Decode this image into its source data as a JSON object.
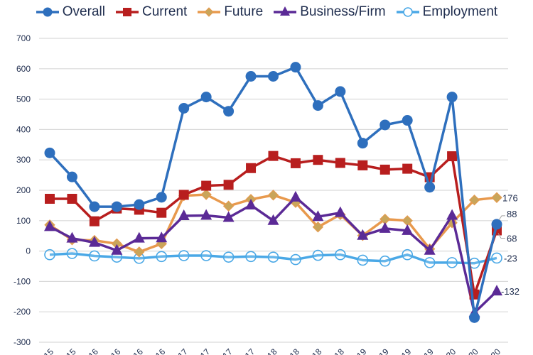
{
  "chart_data": {
    "type": "line",
    "title": "",
    "xlabel": "",
    "ylabel": "",
    "ylim": [
      -300,
      700
    ],
    "yticks": [
      "700",
      "600",
      "500",
      "400",
      "300",
      "200",
      "100",
      "0",
      "-100",
      "-200",
      "-300"
    ],
    "ytick_values": [
      700,
      600,
      500,
      400,
      300,
      200,
      100,
      0,
      -100,
      -200,
      -300
    ],
    "grid": true,
    "legend_position": "top",
    "categories": [
      "15",
      "15",
      "16",
      "16",
      "16",
      "16",
      "17",
      "17",
      "17",
      "17",
      "18",
      "18",
      "18",
      "18",
      "19",
      "19",
      "19",
      "19",
      "20",
      "20",
      "20"
    ],
    "series": [
      {
        "name": "Overall",
        "color": "#2e6fbd",
        "marker": "circle",
        "values": [
          323,
          244,
          146,
          146,
          153,
          177,
          470,
          507,
          460,
          575,
          575,
          605,
          479,
          525,
          355,
          415,
          430,
          210,
          507,
          -219,
          88
        ]
      },
      {
        "name": "Current",
        "color": "#b81e1e",
        "marker": "square",
        "values": [
          172,
          172,
          98,
          140,
          136,
          126,
          185,
          215,
          218,
          273,
          313,
          289,
          300,
          290,
          282,
          268,
          271,
          243,
          312,
          -143,
          68
        ]
      },
      {
        "name": "Future",
        "color": "#e8994d",
        "marker": "diamond",
        "values": [
          86,
          37,
          35,
          24,
          -3,
          24,
          182,
          186,
          148,
          170,
          184,
          160,
          79,
          120,
          51,
          105,
          100,
          7,
          93,
          168,
          176
        ]
      },
      {
        "name": "Business/Firm",
        "color": "#5b2a96",
        "marker": "triangle",
        "values": [
          80,
          42,
          28,
          2,
          42,
          43,
          116,
          117,
          110,
          151,
          100,
          177,
          113,
          126,
          51,
          74,
          67,
          2,
          117,
          -203,
          -132
        ]
      },
      {
        "name": "Employment",
        "color": "#4aa8e6",
        "marker": "open-circle",
        "values": [
          -12,
          -8,
          -16,
          -20,
          -24,
          -18,
          -15,
          -15,
          -20,
          -18,
          -20,
          -28,
          -14,
          -12,
          -30,
          -33,
          -12,
          -38,
          -38,
          -40,
          -23
        ]
      }
    ],
    "end_labels": [
      {
        "series": "Future",
        "text": "176"
      },
      {
        "series": "Overall",
        "text": "88"
      },
      {
        "series": "Current",
        "text": "68"
      },
      {
        "series": "Employment",
        "text": "-23"
      },
      {
        "series": "Business/Firm",
        "text": "-132"
      }
    ]
  }
}
